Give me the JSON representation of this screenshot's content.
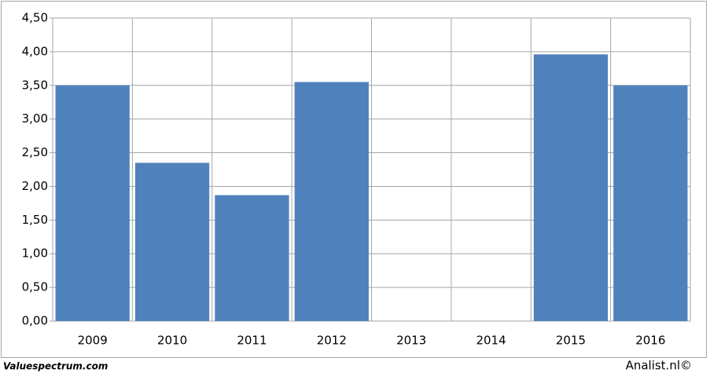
{
  "chart_data": {
    "type": "bar",
    "categories": [
      "2009",
      "2010",
      "2011",
      "2012",
      "2013",
      "2014",
      "2015",
      "2016"
    ],
    "values": [
      3.5,
      2.35,
      1.87,
      3.55,
      null,
      null,
      3.96,
      3.5
    ],
    "color": "#4f81bd",
    "ylim": [
      0,
      4.5
    ],
    "yticks": [
      {
        "value": 0,
        "label": "0,00"
      },
      {
        "value": 0.5,
        "label": "0,50"
      },
      {
        "value": 1,
        "label": "1,00"
      },
      {
        "value": 1.5,
        "label": "1,50"
      },
      {
        "value": 2,
        "label": "2,00"
      },
      {
        "value": 2.5,
        "label": "2,50"
      },
      {
        "value": 3,
        "label": "3,00"
      },
      {
        "value": 3.5,
        "label": "3,50"
      },
      {
        "value": 4,
        "label": "4,00"
      },
      {
        "value": 4.5,
        "label": "4,50"
      }
    ],
    "grid": true,
    "source_left": "Valuespectrum.com",
    "source_right": "Analist.nl©"
  }
}
